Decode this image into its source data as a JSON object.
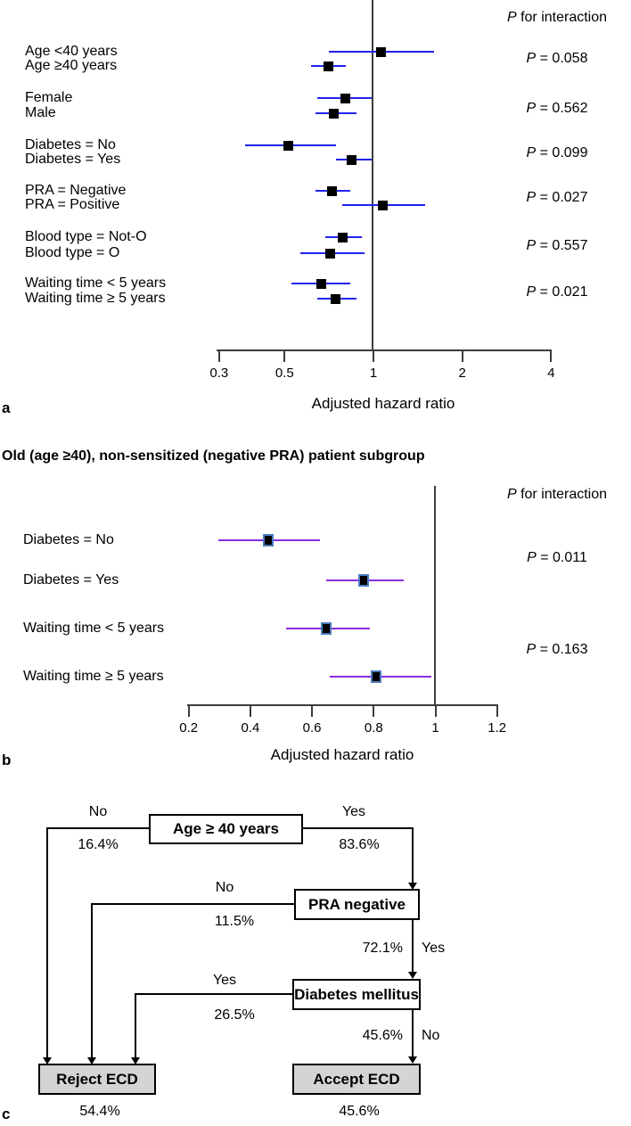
{
  "figure": {
    "panel_a": {
      "panel_label": "a",
      "p_header": "P for interaction",
      "xlabel": "Adjusted hazard ratio"
    },
    "panel_b": {
      "panel_label": "b",
      "title": "Old (age ≥40), non-sensitized (negative PRA) patient subgroup",
      "p_header": "P for interaction",
      "xlabel": "Adjusted hazard ratio"
    },
    "panel_c": {
      "panel_label": "c"
    }
  },
  "chart_data": [
    {
      "type": "forest",
      "panel": "a",
      "scale": "log",
      "title": "",
      "xlabel": "Adjusted hazard ratio",
      "ref_line": 1,
      "xlim": [
        0.3,
        4
      ],
      "ticks": [
        {
          "label": "0.3",
          "v": 0.3
        },
        {
          "label": "0.5",
          "v": 0.5
        },
        {
          "label": "1",
          "v": 1
        },
        {
          "label": "2",
          "v": 2
        },
        {
          "label": "4",
          "v": 4
        }
      ],
      "ci_color": "#2222ee",
      "marker_color": "#000000",
      "p_header": "P for interaction",
      "groups": [
        {
          "p_label": "P = 0.058",
          "rows": [
            {
              "label": "Age <40 years",
              "hr": 1.07,
              "lo": 0.71,
              "hi": 1.62
            },
            {
              "label": "Age ≥40 years",
              "hr": 0.71,
              "lo": 0.62,
              "hi": 0.81
            }
          ]
        },
        {
          "p_label": "P = 0.562",
          "rows": [
            {
              "label": "Female",
              "hr": 0.81,
              "lo": 0.65,
              "hi": 0.99
            },
            {
              "label": "Male",
              "hr": 0.74,
              "lo": 0.64,
              "hi": 0.88
            }
          ]
        },
        {
          "p_label": "P = 0.099",
          "rows": [
            {
              "label": "Diabetes = No",
              "hr": 0.52,
              "lo": 0.37,
              "hi": 0.75
            },
            {
              "label": "Diabetes = Yes",
              "hr": 0.85,
              "lo": 0.75,
              "hi": 0.99
            }
          ]
        },
        {
          "p_label": "P = 0.027",
          "rows": [
            {
              "label": "PRA = Negative",
              "hr": 0.73,
              "lo": 0.64,
              "hi": 0.84
            },
            {
              "label": "PRA = Positive",
              "hr": 1.08,
              "lo": 0.79,
              "hi": 1.51
            }
          ]
        },
        {
          "p_label": "P = 0.557",
          "rows": [
            {
              "label": "Blood type = Not-O",
              "hr": 0.79,
              "lo": 0.69,
              "hi": 0.92
            },
            {
              "label": "Blood type = O",
              "hr": 0.72,
              "lo": 0.57,
              "hi": 0.94
            }
          ]
        },
        {
          "p_label": "P = 0.021",
          "rows": [
            {
              "label": "Waiting time < 5 years",
              "hr": 0.67,
              "lo": 0.53,
              "hi": 0.84
            },
            {
              "label": "Waiting time ≥ 5 years",
              "hr": 0.75,
              "lo": 0.65,
              "hi": 0.88
            }
          ]
        }
      ]
    },
    {
      "type": "forest",
      "panel": "b",
      "scale": "linear",
      "title": "Old (age ≥40), non-sensitized (negative PRA) patient subgroup",
      "xlabel": "Adjusted hazard ratio",
      "ref_line": 1,
      "xlim": [
        0.2,
        1.2
      ],
      "ticks": [
        {
          "label": "0.2",
          "v": 0.2
        },
        {
          "label": "0.4",
          "v": 0.4
        },
        {
          "label": "0.6",
          "v": 0.6
        },
        {
          "label": "0.8",
          "v": 0.8
        },
        {
          "label": "1",
          "v": 1
        },
        {
          "label": "1.2",
          "v": 1.2
        }
      ],
      "ci_color": "#8a2be2",
      "marker_color": "#000000",
      "marker_border": "#4a7dbf",
      "p_header": "P for interaction",
      "groups": [
        {
          "p_label": "P = 0.011",
          "rows": [
            {
              "label": "Diabetes = No",
              "hr": 0.46,
              "lo": 0.3,
              "hi": 0.63
            },
            {
              "label": "Diabetes = Yes",
              "hr": 0.77,
              "lo": 0.65,
              "hi": 0.9
            }
          ]
        },
        {
          "p_label": "P = 0.163",
          "rows": [
            {
              "label": "Waiting time < 5 years",
              "hr": 0.65,
              "lo": 0.52,
              "hi": 0.79
            },
            {
              "label": "Waiting time ≥ 5 years",
              "hr": 0.81,
              "lo": 0.66,
              "hi": 0.99
            }
          ]
        }
      ]
    },
    {
      "type": "tree",
      "panel": "c",
      "nodes": [
        {
          "id": "age",
          "label": "Age ≥ 40 years",
          "kind": "decision"
        },
        {
          "id": "pra",
          "label": "PRA negative",
          "kind": "decision"
        },
        {
          "id": "dm",
          "label": "Diabetes mellitus",
          "kind": "decision"
        },
        {
          "id": "reject",
          "label": "Reject ECD",
          "kind": "outcome",
          "pct": "54.4%"
        },
        {
          "id": "accept",
          "label": "Accept ECD",
          "kind": "outcome",
          "pct": "45.6%"
        }
      ],
      "edges": [
        {
          "from": "age",
          "answer": "No",
          "pct": "16.4%",
          "to": "reject"
        },
        {
          "from": "age",
          "answer": "Yes",
          "pct": "83.6%",
          "to": "pra"
        },
        {
          "from": "pra",
          "answer": "No",
          "pct": "11.5%",
          "to": "reject"
        },
        {
          "from": "pra",
          "answer": "Yes",
          "pct": "72.1%",
          "to": "dm"
        },
        {
          "from": "dm",
          "answer": "Yes",
          "pct": "26.5%",
          "to": "reject"
        },
        {
          "from": "dm",
          "answer": "No",
          "pct": "45.6%",
          "to": "accept"
        }
      ],
      "outcome_box_fill": "#d4d4d4"
    }
  ]
}
